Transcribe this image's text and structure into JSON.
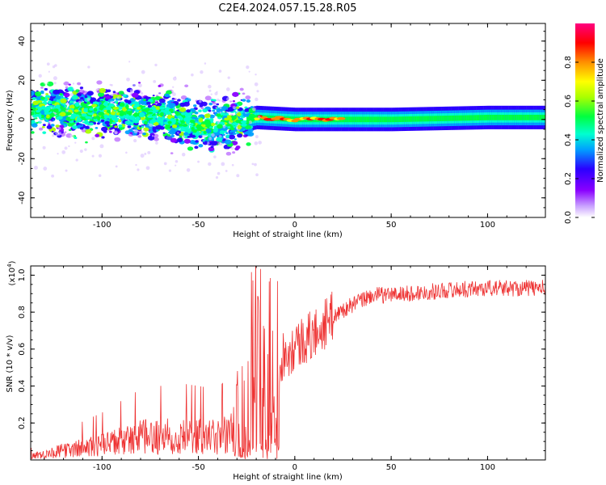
{
  "title": "C2E4.2024.057.15.28.R05",
  "chart_data": [
    {
      "type": "heatmap",
      "xlabel": "Height of straight line (km)",
      "ylabel": "Frequency (Hz)",
      "xlim": [
        -137,
        130
      ],
      "ylim": [
        -50,
        49
      ],
      "xticks": [
        -100,
        -50,
        0,
        50,
        100
      ],
      "yticks": [
        -40,
        -20,
        0,
        20,
        40
      ],
      "colorbar": {
        "label": "Normalized spectral amplitude",
        "range": [
          0,
          1
        ],
        "ticks": [
          "0.0",
          "0.2",
          "0.4",
          "0.6",
          "0.8"
        ],
        "colormap": [
          "#ffffff",
          "#8a00ff",
          "#2a00ff",
          "#00a0ff",
          "#00ffd0",
          "#00ff40",
          "#aaff00",
          "#ffff00",
          "#ff9000",
          "#ff0000",
          "#ff0080"
        ]
      },
      "band_center_hz": [
        {
          "x": -135,
          "y": 5
        },
        {
          "x": -100,
          "y": 4
        },
        {
          "x": -70,
          "y": 2
        },
        {
          "x": -50,
          "y": -3
        },
        {
          "x": -35,
          "y": -2
        },
        {
          "x": -20,
          "y": 1
        },
        {
          "x": 0,
          "y": 0
        },
        {
          "x": 50,
          "y": 0
        },
        {
          "x": 100,
          "y": 1
        },
        {
          "x": 130,
          "y": 1
        }
      ]
    },
    {
      "type": "line",
      "xlabel": "Height of straight line (km)",
      "ylabel": "SNR (10 * v/v)",
      "y_multiplier": "(x10",
      "y_multiplier_exp": "4",
      "xlim": [
        -137,
        130
      ],
      "ylim": [
        0,
        1.05
      ],
      "xticks": [
        -100,
        -50,
        0,
        50,
        100
      ],
      "yticks": [
        0.2,
        0.4,
        0.6,
        0.8,
        1.0
      ],
      "series": [
        {
          "color": "#ee3333",
          "envelope": [
            {
              "x": -137,
              "y": 0.02
            },
            {
              "x": -120,
              "y": 0.05
            },
            {
              "x": -100,
              "y": 0.08
            },
            {
              "x": -80,
              "y": 0.12
            },
            {
              "x": -60,
              "y": 0.13
            },
            {
              "x": -40,
              "y": 0.12
            },
            {
              "x": -32,
              "y": 0.15
            },
            {
              "x": -28,
              "y": 0.45
            },
            {
              "x": -20,
              "y": 0.4
            },
            {
              "x": -12,
              "y": 0.3
            },
            {
              "x": -8,
              "y": 0.55
            },
            {
              "x": 0,
              "y": 0.62
            },
            {
              "x": 10,
              "y": 0.68
            },
            {
              "x": 20,
              "y": 0.78
            },
            {
              "x": 30,
              "y": 0.84
            },
            {
              "x": 40,
              "y": 0.89
            },
            {
              "x": 60,
              "y": 0.9
            },
            {
              "x": 80,
              "y": 0.92
            },
            {
              "x": 100,
              "y": 0.93
            },
            {
              "x": 130,
              "y": 0.93
            }
          ]
        }
      ]
    }
  ]
}
